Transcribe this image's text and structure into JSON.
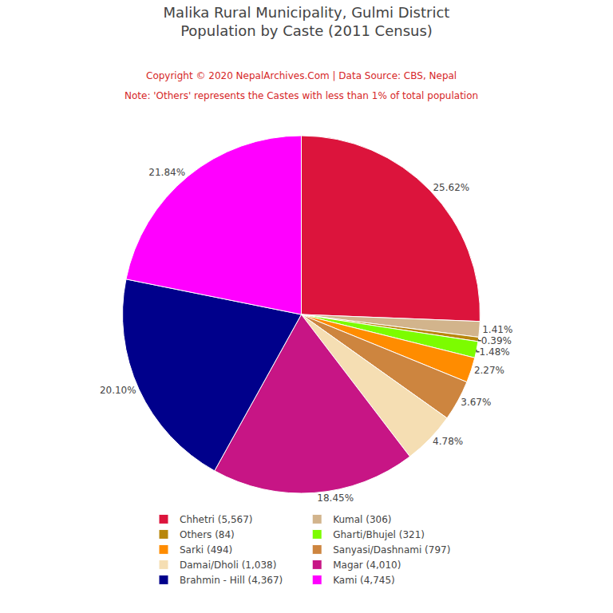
{
  "chart_data": {
    "type": "pie",
    "title": "Malika Rural Municipality, Gulmi District",
    "subtitle": "Population by Caste (2011 Census)",
    "annotations": [
      {
        "text": "Copyright © 2020 NepalArchives.Com | Data Source: CBS, Nepal"
      },
      {
        "text": "Note: 'Others' represents the Castes with less than 1% of total population"
      }
    ],
    "categories": [
      "Chhetri (5,567)",
      "Kumal (306)",
      "Others (84)",
      "Gharti/Bhujel (321)",
      "Sarki (494)",
      "Sanyasi/Dashnami (797)",
      "Damai/Dholi (1,038)",
      "Magar (4,010)",
      "Brahmin - Hill (4,367)",
      "Kami (4,745)"
    ],
    "values": [
      25.62,
      1.41,
      0.39,
      1.48,
      2.27,
      3.67,
      4.78,
      18.45,
      20.1,
      21.84
    ],
    "value_labels": [
      "25.62%",
      "1.41%",
      "0.39%",
      "1.48%",
      "2.27%",
      "3.67%",
      "4.78%",
      "18.45%",
      "20.10%",
      "21.84%"
    ],
    "colors": [
      "#DC143C",
      "#D2B48C",
      "#B8860B",
      "#7CFC00",
      "#FF8C00",
      "#CD853F",
      "#F5DEB3",
      "#C71585",
      "#00008B",
      "#FF00FF"
    ],
    "data_labels": true,
    "legend": "bottom"
  }
}
